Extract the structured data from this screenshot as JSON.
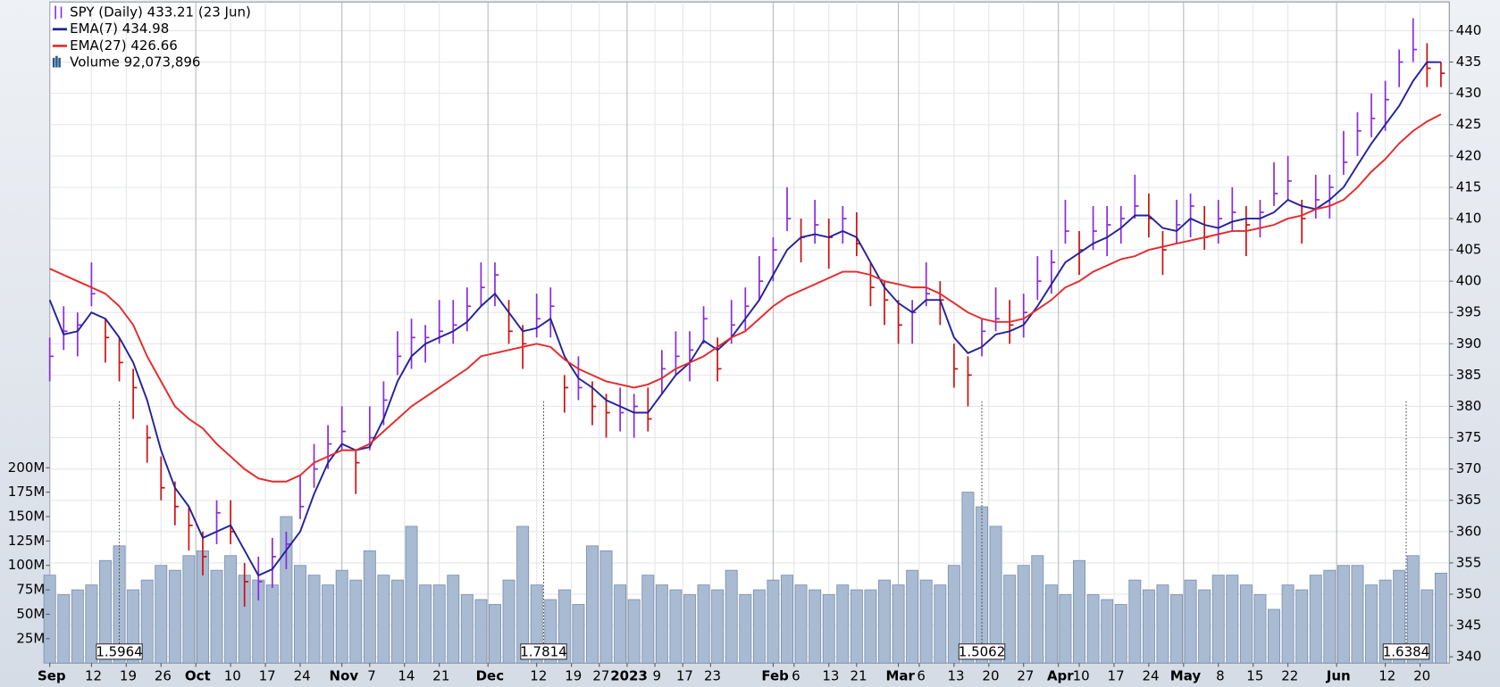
{
  "chart_data": {
    "type": "ohlc",
    "x": [
      0,
      2,
      4,
      6,
      8,
      10,
      12,
      14,
      16,
      18,
      20,
      22,
      24,
      26,
      28,
      30,
      32,
      34,
      36,
      38,
      40,
      42,
      44,
      46,
      48,
      50,
      52,
      54,
      56,
      58,
      60,
      62,
      64,
      66,
      68,
      70,
      72,
      74,
      76,
      78,
      80,
      82,
      84,
      86,
      88,
      90,
      92,
      94,
      96,
      98,
      100,
      102,
      104,
      106,
      108,
      110,
      112,
      114,
      116,
      118,
      120,
      122,
      124,
      126,
      128,
      130,
      132,
      134,
      136,
      138,
      140,
      142,
      144,
      146,
      148,
      150,
      152,
      154,
      156,
      158,
      160,
      162,
      164,
      166,
      168,
      170,
      172,
      174,
      176,
      178,
      180,
      182,
      184,
      186,
      188,
      190,
      192,
      194,
      196,
      198,
      200
    ],
    "xlim": [
      0,
      201.2
    ],
    "xticks": [
      {
        "value": 0,
        "label": "Sep"
      },
      {
        "value": 6,
        "label": "12"
      },
      {
        "value": 11,
        "label": "19"
      },
      {
        "value": 16,
        "label": "26"
      },
      {
        "value": 21,
        "label": "Oct"
      },
      {
        "value": 26,
        "label": "10"
      },
      {
        "value": 31,
        "label": "17"
      },
      {
        "value": 36,
        "label": "24"
      },
      {
        "value": 42,
        "label": "Nov"
      },
      {
        "value": 46,
        "label": "7"
      },
      {
        "value": 51,
        "label": "14"
      },
      {
        "value": 56,
        "label": "21"
      },
      {
        "value": 63,
        "label": "Dec"
      },
      {
        "value": 70,
        "label": "12"
      },
      {
        "value": 75,
        "label": "19"
      },
      {
        "value": 79,
        "label": "27"
      },
      {
        "value": 83,
        "label": "2023"
      },
      {
        "value": 87,
        "label": "9"
      },
      {
        "value": 91,
        "label": "17"
      },
      {
        "value": 95,
        "label": "23"
      },
      {
        "value": 104,
        "label": "Feb"
      },
      {
        "value": 107,
        "label": "6"
      },
      {
        "value": 112,
        "label": "13"
      },
      {
        "value": 116,
        "label": "21"
      },
      {
        "value": 122,
        "label": "Mar"
      },
      {
        "value": 125,
        "label": "6"
      },
      {
        "value": 130,
        "label": "13"
      },
      {
        "value": 135,
        "label": "20"
      },
      {
        "value": 140,
        "label": "27"
      },
      {
        "value": 145,
        "label": "Apr"
      },
      {
        "value": 148,
        "label": "10"
      },
      {
        "value": 153,
        "label": "17"
      },
      {
        "value": 158,
        "label": "24"
      },
      {
        "value": 163,
        "label": "May"
      },
      {
        "value": 168,
        "label": "8"
      },
      {
        "value": 173,
        "label": "15"
      },
      {
        "value": 178,
        "label": "22"
      },
      {
        "value": 185,
        "label": "Jun"
      },
      {
        "value": 192,
        "label": "12"
      },
      {
        "value": 197,
        "label": "20"
      }
    ],
    "ylim": [
      339,
      444.6
    ],
    "yticks": [
      340,
      345,
      350,
      355,
      360,
      365,
      370,
      375,
      380,
      385,
      390,
      395,
      400,
      405,
      410,
      415,
      420,
      425,
      430,
      435,
      440
    ],
    "y2lim": [
      0,
      677
    ],
    "y2ticks": [
      {
        "value": 25,
        "label": "25M"
      },
      {
        "value": 50,
        "label": "50M"
      },
      {
        "value": 75,
        "label": "75M"
      },
      {
        "value": 100,
        "label": "100M"
      },
      {
        "value": 125,
        "label": "125M"
      },
      {
        "value": 150,
        "label": "150M"
      },
      {
        "value": 175,
        "label": "175M"
      },
      {
        "value": 200,
        "label": "200M"
      }
    ],
    "grid": true,
    "series": [
      {
        "name": "SPY (Daily) 433.21 (23 Jun)",
        "up_color": "#8a2be2",
        "down_color": "#d01010",
        "high": [
          391,
          396,
          395,
          403,
          394,
          391,
          386,
          377,
          372,
          368,
          364,
          360,
          365,
          365,
          355,
          356,
          359,
          360,
          369,
          374,
          377,
          380,
          373,
          380,
          384,
          392,
          394,
          393,
          397,
          397,
          399,
          403,
          403,
          397,
          393,
          398,
          399,
          385,
          388,
          384,
          382,
          383,
          382,
          383,
          389,
          392,
          392,
          396,
          391,
          397,
          399,
          404,
          407,
          415,
          410,
          413,
          410,
          412,
          411,
          403,
          400,
          397,
          397,
          403,
          400,
          390,
          388,
          394,
          399,
          397,
          398,
          404,
          405,
          413,
          408,
          412,
          412,
          412,
          417,
          414,
          408,
          413,
          414,
          412,
          413,
          415,
          412,
          413,
          419,
          420,
          413,
          417,
          417,
          424,
          427,
          430,
          432,
          437,
          442,
          438,
          435
        ],
        "low": [
          384,
          389,
          388,
          396,
          387,
          384,
          378,
          371,
          365,
          361,
          357,
          353,
          358,
          358,
          348,
          349,
          351,
          354,
          362,
          367,
          370,
          373,
          366,
          373,
          377,
          385,
          386,
          387,
          390,
          390,
          392,
          396,
          396,
          390,
          386,
          391,
          391,
          379,
          381,
          377,
          375,
          376,
          375,
          376,
          382,
          385,
          384,
          390,
          384,
          390,
          392,
          397,
          400,
          408,
          403,
          406,
          402,
          406,
          404,
          396,
          393,
          390,
          390,
          396,
          393,
          383,
          380,
          388,
          392,
          390,
          391,
          397,
          398,
          406,
          401,
          405,
          404,
          406,
          410,
          407,
          401,
          406,
          407,
          405,
          406,
          408,
          404,
          407,
          412,
          413,
          406,
          410,
          410,
          417,
          420,
          423,
          424,
          431,
          435,
          431,
          431
        ],
        "close": [
          388,
          392,
          393,
          398,
          391,
          387,
          383,
          375,
          367,
          364,
          361,
          356,
          363,
          360,
          352,
          352,
          356,
          358,
          364,
          370,
          374,
          376,
          371,
          375,
          381,
          388,
          391,
          391,
          392,
          393,
          396,
          399,
          401,
          392,
          390,
          394,
          396,
          383,
          383,
          380,
          379,
          379,
          380,
          378,
          386,
          388,
          389,
          394,
          386,
          393,
          396,
          400,
          405,
          410,
          407,
          409,
          407,
          410,
          406,
          399,
          397,
          393,
          395,
          398,
          397,
          386,
          385,
          392,
          394,
          393,
          395,
          400,
          403,
          408,
          405,
          408,
          409,
          410,
          412,
          410,
          405,
          409,
          412,
          407,
          410,
          411,
          409,
          411,
          414,
          416,
          410,
          413,
          415,
          419,
          424,
          426,
          429,
          435,
          437,
          434,
          433.21
        ]
      },
      {
        "name": "EMA(7) 434.98",
        "color": "#23239a",
        "values": [
          397,
          391.5,
          392,
          395,
          394,
          391,
          387,
          381,
          373,
          367,
          364,
          359,
          360,
          361,
          357,
          353,
          354,
          357,
          360,
          366,
          371,
          374,
          373,
          373.5,
          378,
          384,
          388,
          390,
          391,
          392,
          393.5,
          396,
          398,
          395,
          392,
          392.5,
          394,
          388,
          384.5,
          383,
          381,
          380,
          379,
          379,
          382,
          385,
          387,
          390.5,
          389,
          391,
          394,
          397,
          401,
          405,
          407,
          407.5,
          407,
          408,
          407,
          403,
          399,
          396.5,
          395,
          397,
          397,
          391,
          388.5,
          389.5,
          391.5,
          392,
          393,
          396,
          399.5,
          403,
          404.5,
          406,
          407,
          408.5,
          410.5,
          410.5,
          408.5,
          408,
          410,
          409,
          408.5,
          409.5,
          410,
          410,
          411,
          413,
          412,
          411.5,
          413,
          415,
          418.5,
          422,
          425,
          428,
          432,
          435,
          434.98
        ]
      },
      {
        "name": "EMA(27) 426.66",
        "color": "#e62a2a",
        "values": [
          402,
          401,
          400,
          399,
          398,
          396,
          393,
          388,
          384,
          380,
          378,
          376.5,
          374,
          372,
          370,
          368.5,
          368,
          368,
          369,
          371,
          372,
          373,
          373,
          374,
          376,
          378,
          380,
          381.5,
          383,
          384.5,
          386,
          388,
          388.5,
          389,
          389.5,
          390,
          389.5,
          387.5,
          386,
          385,
          384,
          383.5,
          383,
          383.5,
          384.5,
          386,
          387,
          388,
          389.5,
          391,
          392,
          394,
          396,
          397.5,
          398.5,
          399.5,
          400.5,
          401.5,
          401.5,
          401,
          400,
          399.5,
          399,
          399,
          398,
          396.5,
          395,
          394,
          393.5,
          393.5,
          394,
          395.5,
          397,
          399,
          400,
          401.5,
          402.5,
          403.5,
          404,
          405,
          405.5,
          406,
          406.5,
          407,
          407.5,
          408,
          408,
          408.5,
          409,
          410,
          410.5,
          411.5,
          412,
          413,
          415,
          417.5,
          419.5,
          422,
          424,
          425.5,
          426.66
        ]
      },
      {
        "name": "Volume 92,073,896",
        "color": "#a9bbd3",
        "axis": "y2",
        "values": [
          90,
          70,
          75,
          80,
          105,
          120,
          75,
          85,
          100,
          95,
          110,
          115,
          95,
          110,
          90,
          85,
          80,
          150,
          100,
          90,
          80,
          95,
          85,
          115,
          90,
          85,
          140,
          80,
          80,
          90,
          70,
          65,
          60,
          85,
          140,
          80,
          65,
          75,
          60,
          120,
          115,
          80,
          65,
          90,
          80,
          75,
          70,
          80,
          75,
          95,
          70,
          75,
          85,
          90,
          80,
          75,
          70,
          80,
          75,
          75,
          85,
          80,
          95,
          85,
          80,
          100,
          175,
          160,
          140,
          90,
          100,
          110,
          80,
          70,
          105,
          70,
          65,
          60,
          85,
          75,
          80,
          70,
          85,
          75,
          90,
          90,
          80,
          70,
          55,
          80,
          75,
          90,
          95,
          100,
          100,
          80,
          85,
          95,
          110,
          75,
          92.073896
        ]
      }
    ],
    "annotations": [
      {
        "x": 10,
        "label": "1.5964"
      },
      {
        "x": 71,
        "label": "1.7814"
      },
      {
        "x": 134,
        "label": "1.5062"
      },
      {
        "x": 195,
        "label": "1.6384"
      }
    ]
  }
}
